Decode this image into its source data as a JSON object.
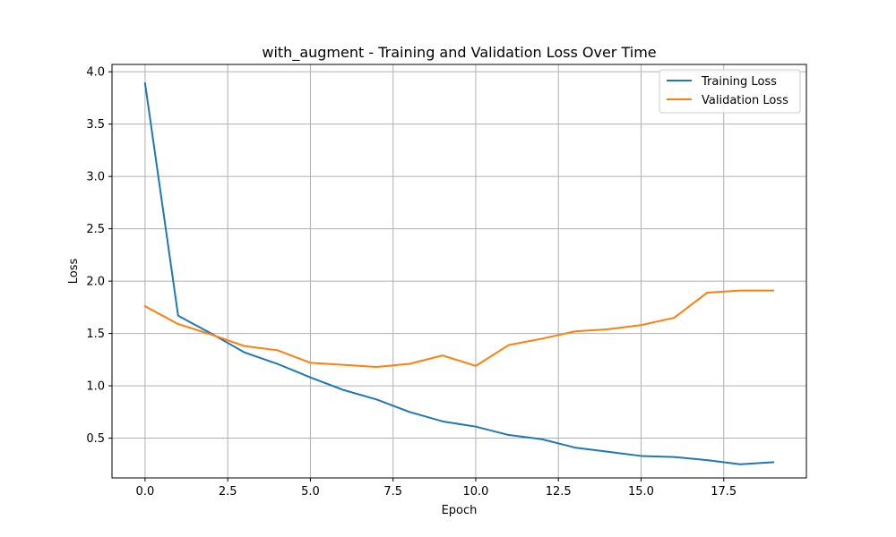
{
  "chart_data": {
    "type": "line",
    "title": "with_augment - Training and Validation Loss Over Time",
    "xlabel": "Epoch",
    "ylabel": "Loss",
    "xlim": [
      -1.0,
      20.0
    ],
    "ylim": [
      0.12,
      4.07
    ],
    "xticks": [
      0,
      2.5,
      5,
      7.5,
      10,
      12.5,
      15,
      17.5
    ],
    "xtick_labels": [
      "0.0",
      "2.5",
      "5.0",
      "7.5",
      "10.0",
      "12.5",
      "15.0",
      "17.5"
    ],
    "yticks": [
      0.5,
      1.0,
      1.5,
      2.0,
      2.5,
      3.0,
      3.5,
      4.0
    ],
    "ytick_labels": [
      "0.5",
      "1.0",
      "1.5",
      "2.0",
      "2.5",
      "3.0",
      "3.5",
      "4.0"
    ],
    "grid": true,
    "legend_position": "top-right",
    "x": [
      0,
      1,
      2,
      3,
      4,
      5,
      6,
      7,
      8,
      9,
      10,
      11,
      12,
      13,
      14,
      15,
      16,
      17,
      18,
      19
    ],
    "series": [
      {
        "name": "Training Loss",
        "color": "#1f77b4",
        "values": [
          3.89,
          1.67,
          1.5,
          1.32,
          1.21,
          1.08,
          0.96,
          0.87,
          0.75,
          0.66,
          0.61,
          0.53,
          0.49,
          0.41,
          0.37,
          0.33,
          0.32,
          0.29,
          0.25,
          0.27
        ]
      },
      {
        "name": "Validation Loss",
        "color": "#ff7f0e",
        "values": [
          1.76,
          1.59,
          1.49,
          1.38,
          1.34,
          1.22,
          1.2,
          1.18,
          1.21,
          1.29,
          1.19,
          1.39,
          1.45,
          1.52,
          1.54,
          1.58,
          1.65,
          1.89,
          1.91,
          1.91
        ]
      }
    ]
  }
}
